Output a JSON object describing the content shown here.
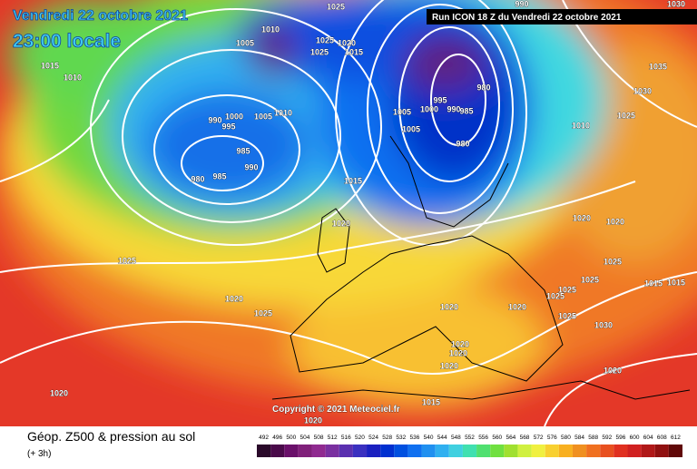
{
  "header": {
    "date": "Vendredi 22 octobre 2021",
    "time": "23:00 locale",
    "run": "Run ICON 18 Z du Vendredi 22 octobre 2021"
  },
  "copyright": "Copyright © 2021 Meteociel.fr",
  "legend": {
    "title": "Géop. Z500 & pression au sol",
    "subtitle": "(+ 3h)",
    "ticks": [
      492,
      496,
      500,
      504,
      508,
      512,
      516,
      520,
      524,
      528,
      532,
      536,
      540,
      544,
      548,
      552,
      556,
      560,
      564,
      568,
      572,
      576,
      580,
      584,
      588,
      592,
      596,
      600,
      604,
      608,
      612
    ],
    "colors": [
      "#2a0a2a",
      "#4a0a4a",
      "#6a106a",
      "#80207a",
      "#902a90",
      "#7a30a0",
      "#5a30b0",
      "#3a30c0",
      "#1a20c0",
      "#0030d0",
      "#0050e0",
      "#1070f0",
      "#2090f0",
      "#30b0f0",
      "#40d0e0",
      "#40e0b0",
      "#50e070",
      "#70e040",
      "#a0e030",
      "#d0f040",
      "#f0f040",
      "#f8d030",
      "#f8b020",
      "#f09020",
      "#f07020",
      "#e85020",
      "#e03020",
      "#d02020",
      "#b01818",
      "#901010",
      "#600808"
    ]
  },
  "isobars": [
    1015,
    1010,
    1005,
    1010,
    1025,
    1025,
    1020,
    1025,
    1015,
    990,
    1030,
    1035,
    1030,
    1025,
    1010,
    980,
    995,
    1000,
    990,
    985,
    1005,
    1005,
    980,
    1000,
    1005,
    1010,
    995,
    990,
    985,
    990,
    980,
    985,
    1015,
    1020,
    1020,
    1020,
    1025,
    1025,
    1020,
    1025,
    1025,
    1025,
    1025,
    1015,
    1015,
    1020,
    1020,
    1025,
    1030,
    1020,
    1020,
    1020,
    1020,
    1020,
    1015,
    1020
  ]
}
